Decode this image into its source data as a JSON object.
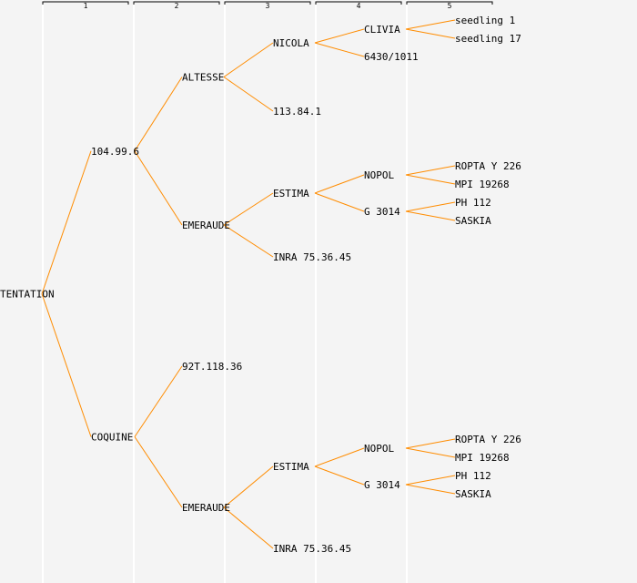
{
  "generations": [
    {
      "label": "1"
    },
    {
      "label": "2"
    },
    {
      "label": "3"
    },
    {
      "label": "4"
    },
    {
      "label": "5"
    }
  ],
  "colors": {
    "background": "#f4f4f4",
    "edge": "#ff8c00",
    "separator": "#ffffff",
    "text": "#000000"
  },
  "nodes": [
    {
      "id": "n0",
      "label": "TENTATION",
      "gen": 0,
      "parent": null
    },
    {
      "id": "n1",
      "label": "104.99.6",
      "gen": 1,
      "parent": "n0"
    },
    {
      "id": "n2",
      "label": "COQUINE",
      "gen": 1,
      "parent": "n0"
    },
    {
      "id": "n3",
      "label": "ALTESSE",
      "gen": 2,
      "parent": "n1"
    },
    {
      "id": "n4",
      "label": "EMERAUDE",
      "gen": 2,
      "parent": "n1"
    },
    {
      "id": "n5",
      "label": "92T.118.36",
      "gen": 2,
      "parent": "n2"
    },
    {
      "id": "n6",
      "label": "EMERAUDE",
      "gen": 2,
      "parent": "n2"
    },
    {
      "id": "n7",
      "label": "NICOLA",
      "gen": 3,
      "parent": "n3"
    },
    {
      "id": "n8",
      "label": "113.84.1",
      "gen": 3,
      "parent": "n3"
    },
    {
      "id": "n9",
      "label": "ESTIMA",
      "gen": 3,
      "parent": "n4"
    },
    {
      "id": "n10",
      "label": "INRA 75.36.45",
      "gen": 3,
      "parent": "n4"
    },
    {
      "id": "n11",
      "label": "ESTIMA",
      "gen": 3,
      "parent": "n6"
    },
    {
      "id": "n12",
      "label": "INRA 75.36.45",
      "gen": 3,
      "parent": "n6"
    },
    {
      "id": "n13",
      "label": "CLIVIA",
      "gen": 4,
      "parent": "n7"
    },
    {
      "id": "n14",
      "label": "6430/1011",
      "gen": 4,
      "parent": "n7"
    },
    {
      "id": "n15",
      "label": "NOPOL",
      "gen": 4,
      "parent": "n9"
    },
    {
      "id": "n16",
      "label": "G 3014",
      "gen": 4,
      "parent": "n9"
    },
    {
      "id": "n17",
      "label": "NOPOL",
      "gen": 4,
      "parent": "n11"
    },
    {
      "id": "n18",
      "label": "G 3014",
      "gen": 4,
      "parent": "n11"
    },
    {
      "id": "n19",
      "label": "seedling 1",
      "gen": 5,
      "parent": "n13"
    },
    {
      "id": "n20",
      "label": "seedling 17",
      "gen": 5,
      "parent": "n13"
    },
    {
      "id": "n21",
      "label": "ROPTA Y 226",
      "gen": 5,
      "parent": "n15"
    },
    {
      "id": "n22",
      "label": "MPI 19268",
      "gen": 5,
      "parent": "n15"
    },
    {
      "id": "n23",
      "label": "PH 112",
      "gen": 5,
      "parent": "n16"
    },
    {
      "id": "n24",
      "label": "SASKIA",
      "gen": 5,
      "parent": "n16"
    },
    {
      "id": "n25",
      "label": "ROPTA Y 226",
      "gen": 5,
      "parent": "n17"
    },
    {
      "id": "n26",
      "label": "MPI 19268",
      "gen": 5,
      "parent": "n17"
    },
    {
      "id": "n27",
      "label": "PH 112",
      "gen": 5,
      "parent": "n18"
    },
    {
      "id": "n28",
      "label": "SASKIA",
      "gen": 5,
      "parent": "n18"
    }
  ]
}
